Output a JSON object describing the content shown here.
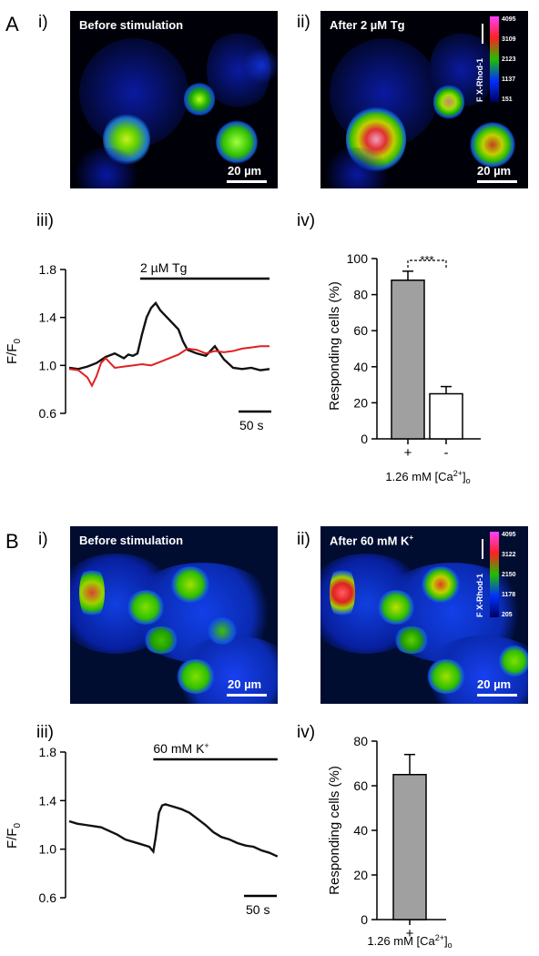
{
  "panel_A": {
    "letter": "A",
    "sub_i": "i)",
    "sub_ii": "ii)",
    "sub_iii": "iii)",
    "sub_iv": "iv)",
    "image_i": {
      "title": "Before stimulation",
      "scale": "20 µm"
    },
    "image_ii": {
      "title": "After 2 µM Tg",
      "scale": "20 µm",
      "colorbar_ticks": [
        "4095",
        "3109",
        "2123",
        "1137",
        "151"
      ],
      "colorbar_axis": "F X-Rhod-1"
    },
    "trace": {
      "stim_label": "2 µM Tg",
      "ylabel": "F/F0",
      "ylabel_main": "F/F",
      "ylabel_sub": "0",
      "yticks": [
        "1.8",
        "1.4",
        "1.0",
        "0.6"
      ],
      "time_scale": "50 s",
      "colors": {
        "black": "#111111",
        "red": "#e02020"
      }
    },
    "bar": {
      "ylabel": "Responding cells (%)",
      "yticks": [
        "100",
        "80",
        "60",
        "40",
        "20",
        "0"
      ],
      "categories": [
        "+",
        "-"
      ],
      "xlabel": "1.26 mM [Ca2+]o",
      "significance": "***",
      "colors": {
        "plus": "#a0a0a0",
        "minus": "#ffffff"
      }
    }
  },
  "panel_B": {
    "letter": "B",
    "sub_i": "i)",
    "sub_ii": "ii)",
    "sub_iii": "iii)",
    "sub_iv": "iv)",
    "image_i": {
      "title": "Before stimulation",
      "scale": "20 µm"
    },
    "image_ii": {
      "title": "After 60 mM K+",
      "scale": "20 µm",
      "colorbar_ticks": [
        "4095",
        "3122",
        "2150",
        "1178",
        "205"
      ],
      "colorbar_axis": "F X-Rhod-1"
    },
    "trace": {
      "stim_label": "60 mM K+",
      "ylabel": "F/F0",
      "ylabel_main": "F/F",
      "ylabel_sub": "0",
      "yticks": [
        "1.8",
        "1.4",
        "1.0",
        "0.6"
      ],
      "time_scale": "50 s"
    },
    "bar": {
      "ylabel": "Responding cells (%)",
      "yticks": [
        "80",
        "60",
        "40",
        "20",
        "0"
      ],
      "categories": [
        "+"
      ],
      "xlabel": "1.26 mM [Ca2+]o"
    }
  },
  "chart_data": [
    {
      "id": "A-iii",
      "type": "line",
      "ylabel": "F/F0",
      "ylim": [
        0.6,
        1.8
      ],
      "series": [
        {
          "color": "#111111",
          "x": [
            0,
            10,
            20,
            30,
            40,
            50,
            60,
            65,
            70,
            75,
            80,
            85,
            90,
            95,
            100,
            110,
            120,
            125,
            130,
            140,
            150,
            160,
            170,
            180,
            190,
            200,
            210,
            220
          ],
          "values": [
            0.98,
            0.97,
            0.99,
            1.02,
            1.07,
            1.1,
            1.06,
            1.09,
            1.08,
            1.1,
            1.26,
            1.4,
            1.48,
            1.52,
            1.46,
            1.38,
            1.3,
            1.2,
            1.13,
            1.1,
            1.08,
            1.16,
            1.05,
            0.98,
            0.97,
            0.98,
            0.96,
            0.97
          ]
        },
        {
          "color": "#e02020",
          "x": [
            0,
            10,
            20,
            25,
            30,
            35,
            40,
            50,
            60,
            70,
            80,
            90,
            100,
            110,
            120,
            130,
            140,
            150,
            160,
            170,
            180,
            190,
            200,
            210,
            220
          ],
          "values": [
            0.97,
            0.96,
            0.9,
            0.83,
            0.91,
            1.02,
            1.06,
            0.98,
            0.99,
            1.0,
            1.01,
            1.0,
            1.03,
            1.06,
            1.09,
            1.14,
            1.13,
            1.1,
            1.12,
            1.11,
            1.12,
            1.14,
            1.15,
            1.16,
            1.16
          ]
        }
      ],
      "stimulus": {
        "label": "2 µM Tg",
        "start": 78,
        "end": 220
      },
      "time_scale_s": 50
    },
    {
      "id": "A-iv",
      "type": "bar",
      "categories": [
        "+",
        "-"
      ],
      "values": [
        88,
        25
      ],
      "errors": [
        5,
        4
      ],
      "ylabel": "Responding cells (%)",
      "xlabel": "1.26 mM [Ca2+]o",
      "ylim": [
        0,
        100
      ]
    },
    {
      "id": "B-iii",
      "type": "line",
      "ylabel": "F/F0",
      "ylim": [
        0.6,
        1.8
      ],
      "series": [
        {
          "color": "#111111",
          "x": [
            0,
            10,
            20,
            30,
            40,
            50,
            60,
            70,
            80,
            90,
            100,
            105,
            108,
            112,
            116,
            120,
            130,
            140,
            150,
            160,
            170,
            180,
            190,
            200,
            210,
            220,
            230,
            240,
            250,
            260
          ],
          "values": [
            1.23,
            1.21,
            1.2,
            1.19,
            1.18,
            1.15,
            1.12,
            1.08,
            1.06,
            1.04,
            1.02,
            0.98,
            1.1,
            1.3,
            1.36,
            1.37,
            1.35,
            1.33,
            1.3,
            1.25,
            1.2,
            1.14,
            1.1,
            1.08,
            1.05,
            1.03,
            1.02,
            0.99,
            0.97,
            0.94
          ]
        }
      ],
      "stimulus": {
        "label": "60 mM K+",
        "start": 105,
        "end": 260
      },
      "time_scale_s": 50
    },
    {
      "id": "B-iv",
      "type": "bar",
      "categories": [
        "+"
      ],
      "values": [
        65
      ],
      "errors": [
        9
      ],
      "ylabel": "Responding cells (%)",
      "xlabel": "1.26 mM [Ca2+]o",
      "ylim": [
        0,
        80
      ]
    }
  ]
}
